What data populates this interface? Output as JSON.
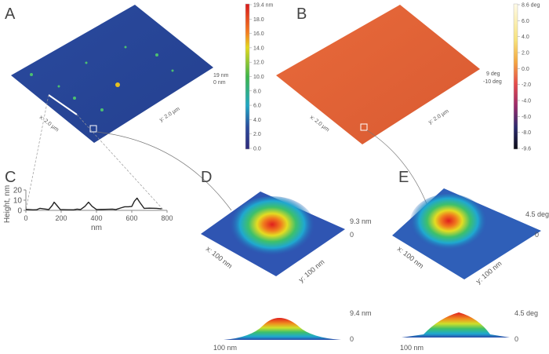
{
  "panels": {
    "A": {
      "label": "A",
      "x_axis": "x: 2.0 µm",
      "y_axis": "y: 2.0 µm",
      "z_max": "19 nm",
      "z_min": "0 nm",
      "colorbar": {
        "ticks": [
          "19.4 nm",
          "18.0",
          "16.0",
          "14.0",
          "12.0",
          "10.0",
          "8.0",
          "6.0",
          "4.0",
          "2.0",
          "0.0"
        ],
        "colors": [
          "#d7191c",
          "#f57e20",
          "#e3d81c",
          "#3db54a",
          "#20a6c4",
          "#2b4a9b",
          "#2e2a7a"
        ]
      }
    },
    "B": {
      "label": "B",
      "x_axis": "x: 2.0 µm",
      "y_axis": "y: 2.0 µm",
      "z_max": "9 deg",
      "z_min": "-10 deg",
      "colorbar": {
        "ticks": [
          "8.6 deg",
          "6.0",
          "4.0",
          "2.0",
          "0.0",
          "-2.0",
          "-4.0",
          "-6.0",
          "-8.0",
          "-9.6"
        ],
        "colors": [
          "#fffbe8",
          "#f7e27a",
          "#f4a640",
          "#e54b4b",
          "#9a2a6a",
          "#2b2a6e",
          "#0b0b14"
        ]
      }
    },
    "C": {
      "label": "C"
    },
    "D": {
      "label": "D",
      "z_max": "9.3 nm",
      "z_min": "0",
      "x_axis": "x: 100 nm",
      "y_axis": "y: 100 nm",
      "profile_max": "9.4 nm",
      "profile_min": "0",
      "profile_width": "100 nm"
    },
    "E": {
      "label": "E",
      "z_max": "4.5 deg",
      "z_min": "0",
      "x_axis": "x: 100 nm",
      "y_axis": "y: 100 nm",
      "profile_max": "4.5 deg",
      "profile_min": "0",
      "profile_width": "100 nm"
    }
  },
  "chart_data": {
    "type": "line",
    "xlabel": "nm",
    "ylabel": "Height, nm",
    "xlim": [
      0,
      800
    ],
    "ylim": [
      0,
      20
    ],
    "xticks": [
      "0",
      "200",
      "400",
      "600",
      "800"
    ],
    "yticks": [
      "0",
      "10",
      "20"
    ],
    "x": [
      0,
      40,
      60,
      80,
      100,
      130,
      150,
      160,
      175,
      195,
      230,
      270,
      290,
      310,
      335,
      355,
      375,
      400,
      450,
      490,
      510,
      540,
      560,
      580,
      600,
      615,
      630,
      645,
      670,
      700,
      740,
      770
    ],
    "y": [
      1,
      0.5,
      0.6,
      2,
      1.5,
      0.8,
      5,
      8,
      5,
      0.8,
      0.6,
      0.5,
      1.2,
      0.8,
      4,
      8,
      4,
      0.8,
      1,
      1.2,
      0.8,
      2.5,
      3.5,
      3.5,
      3.8,
      9,
      12,
      8,
      2,
      2.2,
      2,
      1.5
    ]
  }
}
